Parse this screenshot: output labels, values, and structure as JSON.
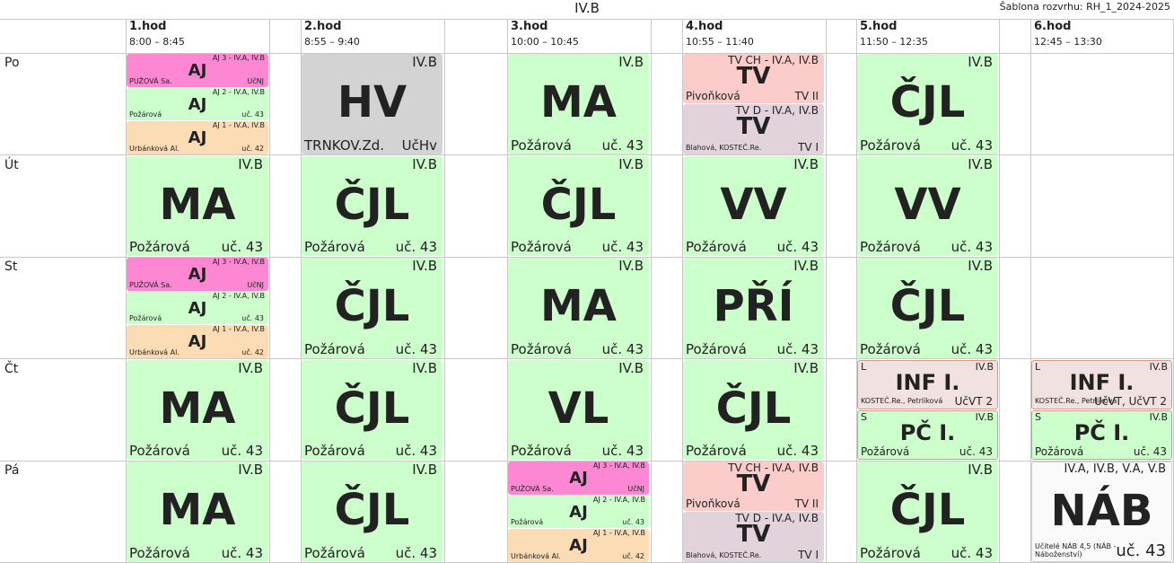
{
  "title": "IV.B",
  "template_label": "Šablona rozvrhu: RH_1_2024-2025",
  "colors": {
    "green": "#ccffcc",
    "pink": "#fd87d3",
    "peach": "#fcdcb4",
    "gray": "#d3d3d3",
    "salmon": "#fccccb",
    "mauve": "#e1d2dc",
    "group": "#f1e1e0",
    "white": "#fafafa"
  },
  "periods": [
    {
      "num": "1.hod",
      "time": "8:00 – 8:45"
    },
    {
      "num": "2.hod",
      "time": "8:55 – 9:40"
    },
    {
      "num": "3.hod",
      "time": "10:00 – 10:45"
    },
    {
      "num": "4.hod",
      "time": "10:55 – 11:40"
    },
    {
      "num": "5.hod",
      "time": "11:50 – 12:35"
    },
    {
      "num": "6.hod",
      "time": "12:45 – 13:30"
    }
  ],
  "days": [
    "Po",
    "Út",
    "St",
    "Čt",
    "Pá"
  ],
  "cells": [
    {
      "day": 0,
      "col": 0,
      "kind": "part",
      "color": "pink",
      "cls": "AJ 3 - IV.A, IV.B",
      "subj": "AJ",
      "teacher": "PUŽOVÁ Sa.",
      "room": "UčNJ"
    },
    {
      "day": 0,
      "col": 0,
      "kind": "part",
      "color": "green",
      "cls": "AJ 2 - IV.A, IV.B",
      "subj": "AJ",
      "teacher": "Požárová",
      "room": "uč. 43"
    },
    {
      "day": 0,
      "col": 0,
      "kind": "part",
      "color": "peach",
      "cls": "AJ 1 - IV.A, IV.B",
      "subj": "AJ",
      "teacher": "Urbánková Al.",
      "room": "uč. 42"
    },
    {
      "day": 0,
      "col": 1,
      "kind": "full",
      "color": "gray",
      "cls": "IV.B",
      "subj": "HV",
      "teacher": "TRNKOV.Zd.",
      "room": "UčHv"
    },
    {
      "day": 0,
      "col": 2,
      "kind": "full",
      "color": "green",
      "cls": "IV.B",
      "subj": "MA",
      "teacher": "Požárová",
      "room": "uč. 43"
    },
    {
      "day": 0,
      "col": 3,
      "kind": "tv",
      "color": "salmon",
      "cls": "TV CH - IV.A, IV.B",
      "subj": "TV",
      "teacher": "Pivoňková",
      "room": "TV II"
    },
    {
      "day": 0,
      "col": 3,
      "kind": "tv",
      "color": "mauve",
      "cls": "TV D - IV.A, IV.B",
      "subj": "TV",
      "teacher": "Blahová, KOSTEČ.Re.",
      "room": "TV I"
    },
    {
      "day": 0,
      "col": 4,
      "kind": "full",
      "color": "green",
      "cls": "IV.B",
      "subj": "ČJL",
      "teacher": "Požárová",
      "room": "uč. 43"
    },
    {
      "day": 1,
      "col": 0,
      "kind": "full",
      "color": "green",
      "cls": "IV.B",
      "subj": "MA",
      "teacher": "Požárová",
      "room": "uč. 43"
    },
    {
      "day": 1,
      "col": 1,
      "kind": "full",
      "color": "green",
      "cls": "IV.B",
      "subj": "ČJL",
      "teacher": "Požárová",
      "room": "uč. 43"
    },
    {
      "day": 1,
      "col": 2,
      "kind": "full",
      "color": "green",
      "cls": "IV.B",
      "subj": "ČJL",
      "teacher": "Požárová",
      "room": "uč. 43"
    },
    {
      "day": 1,
      "col": 3,
      "kind": "full",
      "color": "green",
      "cls": "IV.B",
      "subj": "VV",
      "teacher": "Požárová",
      "room": "uč. 43"
    },
    {
      "day": 1,
      "col": 4,
      "kind": "full",
      "color": "green",
      "cls": "IV.B",
      "subj": "VV",
      "teacher": "Požárová",
      "room": "uč. 43"
    },
    {
      "day": 2,
      "col": 0,
      "kind": "part",
      "color": "pink",
      "cls": "AJ 3 - IV.A, IV.B",
      "subj": "AJ",
      "teacher": "PUŽOVÁ Sa.",
      "room": "UčNJ"
    },
    {
      "day": 2,
      "col": 0,
      "kind": "part",
      "color": "green",
      "cls": "AJ 2 - IV.A, IV.B",
      "subj": "AJ",
      "teacher": "Požárová",
      "room": "uč. 43"
    },
    {
      "day": 2,
      "col": 0,
      "kind": "part",
      "color": "peach",
      "cls": "AJ 1 - IV.A, IV.B",
      "subj": "AJ",
      "teacher": "Urbánková Al.",
      "room": "uč. 42"
    },
    {
      "day": 2,
      "col": 1,
      "kind": "full",
      "color": "green",
      "cls": "IV.B",
      "subj": "ČJL",
      "teacher": "Požárová",
      "room": "uč. 43"
    },
    {
      "day": 2,
      "col": 2,
      "kind": "full",
      "color": "green",
      "cls": "IV.B",
      "subj": "MA",
      "teacher": "Požárová",
      "room": "uč. 43"
    },
    {
      "day": 2,
      "col": 3,
      "kind": "full",
      "color": "green",
      "cls": "IV.B",
      "subj": "PŘÍ",
      "teacher": "Požárová",
      "room": "uč. 43"
    },
    {
      "day": 2,
      "col": 4,
      "kind": "full",
      "color": "green",
      "cls": "IV.B",
      "subj": "ČJL",
      "teacher": "Požárová",
      "room": "uč. 43"
    },
    {
      "day": 3,
      "col": 0,
      "kind": "full",
      "color": "green",
      "cls": "IV.B",
      "subj": "MA",
      "teacher": "Požárová",
      "room": "uč. 43"
    },
    {
      "day": 3,
      "col": 1,
      "kind": "full",
      "color": "green",
      "cls": "IV.B",
      "subj": "ČJL",
      "teacher": "Požárová",
      "room": "uč. 43"
    },
    {
      "day": 3,
      "col": 2,
      "kind": "full",
      "color": "green",
      "cls": "IV.B",
      "subj": "VL",
      "teacher": "Požárová",
      "room": "uč. 43"
    },
    {
      "day": 3,
      "col": 3,
      "kind": "full",
      "color": "green",
      "cls": "IV.B",
      "subj": "ČJL",
      "teacher": "Požárová",
      "room": "uč. 43"
    },
    {
      "day": 3,
      "col": 4,
      "kind": "grp",
      "color": "group",
      "grp": "L",
      "cls": "IV.B",
      "subj": "INF I.",
      "teacher": "KOSTEČ.Re., Petrlíková",
      "room": "UčVT 2",
      "small": true
    },
    {
      "day": 3,
      "col": 4,
      "kind": "grp",
      "color": "green",
      "grp": "S",
      "cls": "IV.B",
      "subj": "PČ I.",
      "teacher": "Požárová",
      "room": "uč. 43"
    },
    {
      "day": 3,
      "col": 5,
      "kind": "grp",
      "color": "group",
      "grp": "L",
      "cls": "IV.B",
      "subj": "INF I.",
      "teacher": "KOSTEČ.Re., Petrlíková",
      "room": "UčVT, UčVT 2",
      "small": true
    },
    {
      "day": 3,
      "col": 5,
      "kind": "grp",
      "color": "green",
      "grp": "S",
      "cls": "IV.B",
      "subj": "PČ I.",
      "teacher": "Požárová",
      "room": "uč. 43"
    },
    {
      "day": 4,
      "col": 0,
      "kind": "full",
      "color": "green",
      "cls": "IV.B",
      "subj": "MA",
      "teacher": "Požárová",
      "room": "uč. 43"
    },
    {
      "day": 4,
      "col": 1,
      "kind": "full",
      "color": "green",
      "cls": "IV.B",
      "subj": "ČJL",
      "teacher": "Požárová",
      "room": "uč. 43"
    },
    {
      "day": 4,
      "col": 2,
      "kind": "part",
      "color": "pink",
      "cls": "AJ 3 - IV.A, IV.B",
      "subj": "AJ",
      "teacher": "PUŽOVÁ Sa.",
      "room": "UčNJ"
    },
    {
      "day": 4,
      "col": 2,
      "kind": "part",
      "color": "green",
      "cls": "AJ 2 - IV.A, IV.B",
      "subj": "AJ",
      "teacher": "Požárová",
      "room": "uč. 43"
    },
    {
      "day": 4,
      "col": 2,
      "kind": "part",
      "color": "peach",
      "cls": "AJ 1 - IV.A, IV.B",
      "subj": "AJ",
      "teacher": "Urbánková Al.",
      "room": "uč. 42"
    },
    {
      "day": 4,
      "col": 3,
      "kind": "tv",
      "color": "salmon",
      "cls": "TV CH - IV.A, IV.B",
      "subj": "TV",
      "teacher": "Pivoňková",
      "room": "TV II"
    },
    {
      "day": 4,
      "col": 3,
      "kind": "tv",
      "color": "mauve",
      "cls": "TV D - IV.A, IV.B",
      "subj": "TV",
      "teacher": "Blahová, KOSTEČ.Re.",
      "room": "TV I"
    },
    {
      "day": 4,
      "col": 4,
      "kind": "full",
      "color": "green",
      "cls": "IV.B",
      "subj": "ČJL",
      "teacher": "Požárová",
      "room": "uč. 43"
    },
    {
      "day": 4,
      "col": 5,
      "kind": "nab",
      "color": "white",
      "cls": "IV.A, IV.B, V.A, V.B",
      "subj": "NÁB",
      "teacher": "Učitelé NÁB 4,5 (NÁB - Náboženství)",
      "room": "uč. 43"
    }
  ]
}
